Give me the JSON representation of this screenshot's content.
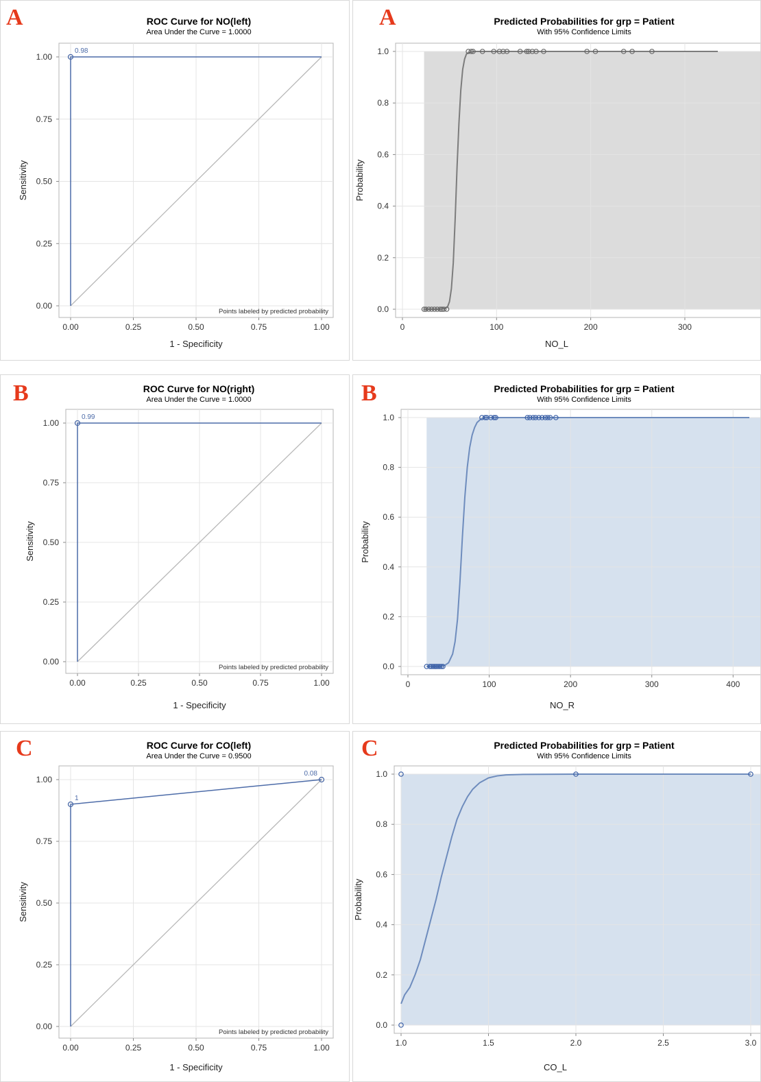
{
  "panels": [
    {
      "label": "A",
      "title": "ROC Curve for NO(left)",
      "subtitle": "Area Under the Curve = 1.0000"
    },
    {
      "label": "A",
      "title": "Predicted Probabilities for grp = Patient",
      "subtitle": "With 95% Confidence Limits"
    },
    {
      "label": "B",
      "title": "ROC Curve for NO(right)",
      "subtitle": "Area Under the Curve = 1.0000"
    },
    {
      "label": "B",
      "title": "Predicted Probabilities for grp = Patient",
      "subtitle": "With 95% Confidence Limits"
    },
    {
      "label": "C",
      "title": "ROC Curve for CO(left)",
      "subtitle": "Area Under the Curve = 0.9500"
    },
    {
      "label": "C",
      "title": "Predicted Probabilities for grp = Patient",
      "subtitle": "With 95% Confidence Limits"
    }
  ],
  "chart_data": [
    {
      "type": "line",
      "title": "ROC Curve for NO(left)",
      "subtitle": "Area Under the Curve = 1.0000",
      "xlabel": "1 - Specificity",
      "ylabel": "Sensitivity",
      "xlim": [
        0,
        1
      ],
      "ylim": [
        0,
        1
      ],
      "xticks": [
        "0.00",
        "0.25",
        "0.50",
        "0.75",
        "1.00"
      ],
      "yticks": [
        "0.00",
        "0.25",
        "0.50",
        "0.75",
        "1.00"
      ],
      "series": [
        {
          "x": [
            0,
            0,
            1
          ],
          "y": [
            0,
            1,
            1
          ]
        }
      ],
      "point_labels": [
        {
          "x": 0,
          "y": 1,
          "text": "0.98"
        }
      ],
      "reference_line": [
        [
          0,
          0
        ],
        [
          1,
          1
        ]
      ],
      "note": "Points labeled by predicted probability",
      "grid": true,
      "colors": {
        "curve": "#4c6ba8",
        "reference": "#b8b8b8"
      }
    },
    {
      "type": "line",
      "title": "Predicted Probabilities for grp = Patient",
      "subtitle": "With 95% Confidence Limits",
      "xlabel": "NO_L",
      "ylabel": "Probability",
      "xlim": [
        0,
        335
      ],
      "ylim": [
        0,
        1
      ],
      "xticks": [
        "0",
        "100",
        "200",
        "300"
      ],
      "yticks": [
        "0.0",
        "0.2",
        "0.4",
        "0.6",
        "0.8",
        "1.0"
      ],
      "band": {
        "x_start": 23,
        "lower": 0,
        "upper": 1
      },
      "curve": {
        "x": [
          23,
          40,
          45,
          48,
          50,
          52,
          54,
          56,
          58,
          60,
          62,
          64,
          66,
          68,
          70,
          75,
          90,
          335
        ],
        "y": [
          0,
          0,
          0.003,
          0.01,
          0.03,
          0.08,
          0.18,
          0.35,
          0.55,
          0.72,
          0.85,
          0.93,
          0.97,
          0.99,
          0.995,
          1,
          1,
          1
        ]
      },
      "observed_points": [
        {
          "x": 23,
          "y": 0
        },
        {
          "x": 25,
          "y": 0
        },
        {
          "x": 28,
          "y": 0
        },
        {
          "x": 31,
          "y": 0
        },
        {
          "x": 34,
          "y": 0
        },
        {
          "x": 37,
          "y": 0
        },
        {
          "x": 40,
          "y": 0
        },
        {
          "x": 42,
          "y": 0
        },
        {
          "x": 44,
          "y": 0
        },
        {
          "x": 47,
          "y": 0
        },
        {
          "x": 70,
          "y": 1
        },
        {
          "x": 73,
          "y": 1
        },
        {
          "x": 75,
          "y": 1
        },
        {
          "x": 85,
          "y": 1
        },
        {
          "x": 97,
          "y": 1
        },
        {
          "x": 103,
          "y": 1
        },
        {
          "x": 107,
          "y": 1
        },
        {
          "x": 111,
          "y": 1
        },
        {
          "x": 125,
          "y": 1
        },
        {
          "x": 132,
          "y": 1
        },
        {
          "x": 134,
          "y": 1
        },
        {
          "x": 138,
          "y": 1
        },
        {
          "x": 142,
          "y": 1
        },
        {
          "x": 150,
          "y": 1
        },
        {
          "x": 196,
          "y": 1
        },
        {
          "x": 205,
          "y": 1
        },
        {
          "x": 235,
          "y": 1
        },
        {
          "x": 244,
          "y": 1
        },
        {
          "x": 265,
          "y": 1
        }
      ],
      "grid": true,
      "colors": {
        "curve": "#7c7c7c",
        "band": "#dcdcdc",
        "points": "#666666"
      }
    },
    {
      "type": "line",
      "title": "ROC Curve for NO(right)",
      "subtitle": "Area Under the Curve = 1.0000",
      "xlabel": "1 - Specificity",
      "ylabel": "Sensitivity",
      "xlim": [
        0,
        1
      ],
      "ylim": [
        0,
        1
      ],
      "xticks": [
        "0.00",
        "0.25",
        "0.50",
        "0.75",
        "1.00"
      ],
      "yticks": [
        "0.00",
        "0.25",
        "0.50",
        "0.75",
        "1.00"
      ],
      "series": [
        {
          "x": [
            0,
            0,
            1
          ],
          "y": [
            0,
            1,
            1
          ]
        }
      ],
      "point_labels": [
        {
          "x": 0,
          "y": 1,
          "text": "0.99"
        }
      ],
      "reference_line": [
        [
          0,
          0
        ],
        [
          1,
          1
        ]
      ],
      "note": "Points labeled by predicted probability",
      "grid": true,
      "colors": {
        "curve": "#4c6ba8",
        "reference": "#b8b8b8"
      }
    },
    {
      "type": "line",
      "title": "Predicted Probabilities for grp = Patient",
      "subtitle": "With 95% Confidence Limits",
      "xlabel": "NO_R",
      "ylabel": "Probability",
      "xlim": [
        0,
        420
      ],
      "ylim": [
        0,
        1
      ],
      "xticks": [
        "0",
        "100",
        "200",
        "300",
        "400"
      ],
      "yticks": [
        "0.0",
        "0.2",
        "0.4",
        "0.6",
        "0.8",
        "1.0"
      ],
      "band": {
        "x_start": 23,
        "lower": 0,
        "upper": 1
      },
      "curve": {
        "x": [
          23,
          40,
          45,
          50,
          55,
          58,
          61,
          64,
          67,
          70,
          73,
          76,
          79,
          82,
          85,
          90,
          95,
          420
        ],
        "y": [
          0,
          0.001,
          0.004,
          0.015,
          0.05,
          0.1,
          0.19,
          0.34,
          0.52,
          0.68,
          0.8,
          0.88,
          0.93,
          0.96,
          0.98,
          0.995,
          1,
          1
        ]
      },
      "observed_points": [
        {
          "x": 23,
          "y": 0
        },
        {
          "x": 27,
          "y": 0
        },
        {
          "x": 29,
          "y": 0
        },
        {
          "x": 31,
          "y": 0
        },
        {
          "x": 33,
          "y": 0
        },
        {
          "x": 35,
          "y": 0
        },
        {
          "x": 37,
          "y": 0
        },
        {
          "x": 39,
          "y": 0
        },
        {
          "x": 41,
          "y": 0
        },
        {
          "x": 43,
          "y": 0
        },
        {
          "x": 91,
          "y": 1
        },
        {
          "x": 95,
          "y": 1
        },
        {
          "x": 97,
          "y": 1
        },
        {
          "x": 102,
          "y": 1
        },
        {
          "x": 106,
          "y": 1
        },
        {
          "x": 108,
          "y": 1
        },
        {
          "x": 147,
          "y": 1
        },
        {
          "x": 150,
          "y": 1
        },
        {
          "x": 154,
          "y": 1
        },
        {
          "x": 157,
          "y": 1
        },
        {
          "x": 161,
          "y": 1
        },
        {
          "x": 165,
          "y": 1
        },
        {
          "x": 169,
          "y": 1
        },
        {
          "x": 172,
          "y": 1
        },
        {
          "x": 175,
          "y": 1
        },
        {
          "x": 182,
          "y": 1
        }
      ],
      "grid": true,
      "colors": {
        "curve": "#6e8cbd",
        "band": "#d6e1ee",
        "points": "#3a5fa6"
      }
    },
    {
      "type": "line",
      "title": "ROC Curve for CO(left)",
      "subtitle": "Area Under the Curve = 0.9500",
      "xlabel": "1 - Specificity",
      "ylabel": "Sensitivity",
      "xlim": [
        0,
        1
      ],
      "ylim": [
        0,
        1
      ],
      "xticks": [
        "0.00",
        "0.25",
        "0.50",
        "0.75",
        "1.00"
      ],
      "yticks": [
        "0.00",
        "0.25",
        "0.50",
        "0.75",
        "1.00"
      ],
      "series": [
        {
          "x": [
            0,
            0,
            1
          ],
          "y": [
            0,
            0.9,
            1
          ]
        }
      ],
      "point_labels": [
        {
          "x": 0,
          "y": 0.9,
          "text": "1"
        },
        {
          "x": 1,
          "y": 1,
          "text": "0.08"
        }
      ],
      "reference_line": [
        [
          0,
          0
        ],
        [
          1,
          1
        ]
      ],
      "note": "Points labeled by predicted probability",
      "grid": true,
      "colors": {
        "curve": "#4c6ba8",
        "reference": "#b8b8b8"
      }
    },
    {
      "type": "line",
      "title": "Predicted Probabilities for grp = Patient",
      "subtitle": "With 95% Confidence Limits",
      "xlabel": "CO_L",
      "ylabel": "Probability",
      "xlim": [
        1,
        3
      ],
      "ylim": [
        0,
        1
      ],
      "xticks": [
        "1.0",
        "1.5",
        "2.0",
        "2.5",
        "3.0"
      ],
      "yticks": [
        "0.0",
        "0.2",
        "0.4",
        "0.6",
        "0.8",
        "1.0"
      ],
      "band": {
        "x_start": 1.0,
        "lower": 0,
        "upper": 1
      },
      "curve": {
        "x": [
          1.0,
          1.02,
          1.05,
          1.08,
          1.11,
          1.14,
          1.17,
          1.2,
          1.23,
          1.26,
          1.29,
          1.32,
          1.35,
          1.38,
          1.41,
          1.45,
          1.5,
          1.55,
          1.6,
          1.7,
          2.0,
          3.0
        ],
        "y": [
          0.085,
          0.12,
          0.15,
          0.2,
          0.26,
          0.34,
          0.42,
          0.5,
          0.59,
          0.67,
          0.75,
          0.82,
          0.87,
          0.91,
          0.94,
          0.966,
          0.985,
          0.993,
          0.997,
          0.999,
          1,
          1
        ]
      },
      "observed_points": [
        {
          "x": 1.0,
          "y": 1
        },
        {
          "x": 1.0,
          "y": 0
        },
        {
          "x": 2.0,
          "y": 1
        },
        {
          "x": 3.0,
          "y": 1
        }
      ],
      "grid": true,
      "colors": {
        "curve": "#6e8cbd",
        "band": "#d6e1ee",
        "points": "#3a5fa6"
      }
    }
  ]
}
